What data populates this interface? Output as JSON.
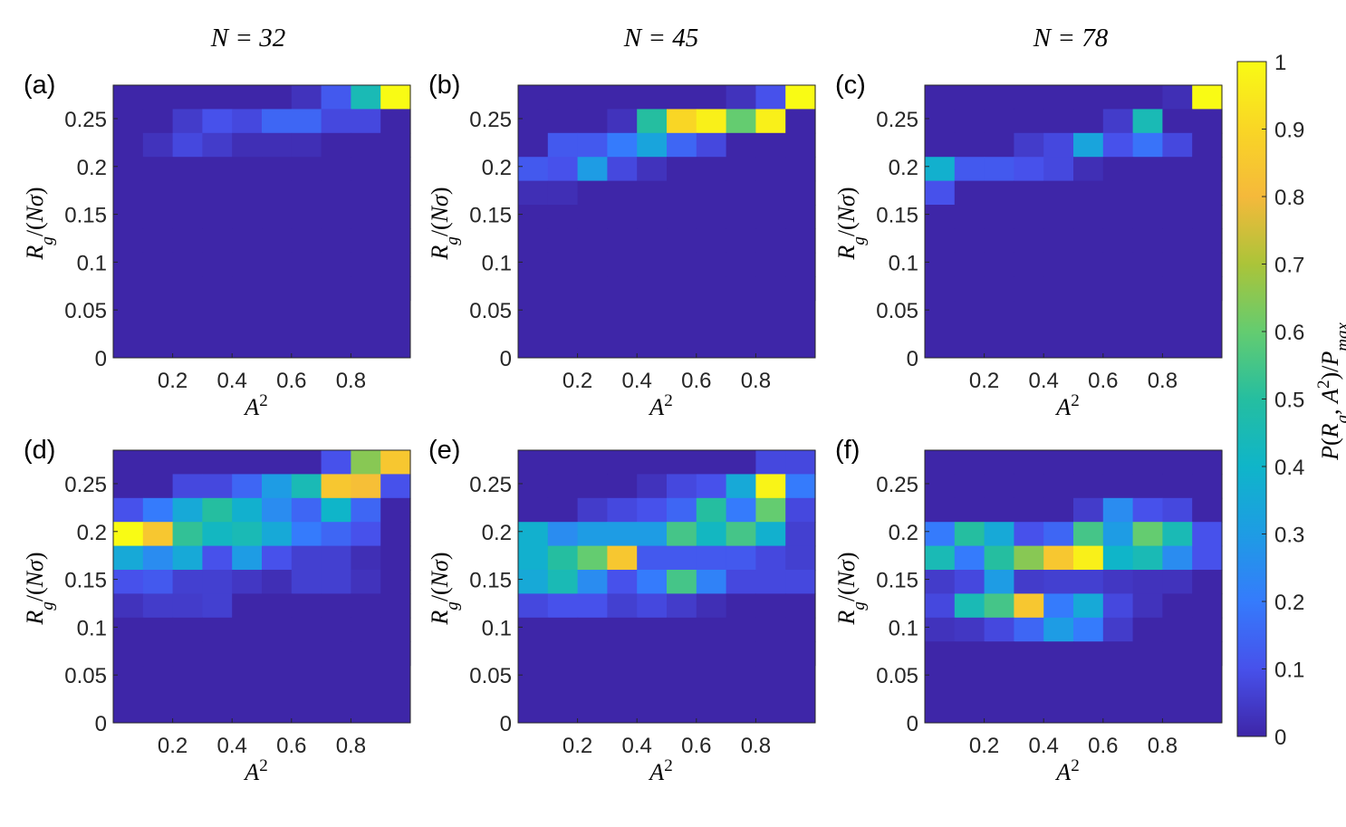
{
  "colors": {
    "background": "#ffffff",
    "axis": "#262626"
  },
  "chart_data": {
    "type": "heatmap",
    "colormap": "parula",
    "x_label_text": "A²",
    "y_label_text": "R_g/(Nσ)",
    "x_ticks": [
      0.2,
      0.4,
      0.6,
      0.8
    ],
    "x_tick_labels": [
      "0.2",
      "0.4",
      "0.6",
      "0.8"
    ],
    "y_ticks": [
      0,
      0.05,
      0.1,
      0.15,
      0.2,
      0.25
    ],
    "y_tick_labels": [
      "0",
      "0.05",
      "0.1",
      "0.15",
      "0.2",
      "0.25"
    ],
    "xlim": [
      0,
      1
    ],
    "ylim": [
      0,
      0.285
    ],
    "x_bins": [
      0.05,
      0.15,
      0.25,
      0.35,
      0.45,
      0.55,
      0.65,
      0.75,
      0.85,
      0.95
    ],
    "y_bins_top_to_bottom": [
      0.275,
      0.25,
      0.225,
      0.2,
      0.175,
      0.15,
      0.125,
      0.1,
      0.075
    ],
    "column_titles": [
      "N = 32",
      "N = 45",
      "N = 78"
    ],
    "colorbar": {
      "label": "P(R_g, A²)/P_max",
      "range": [
        0,
        1
      ],
      "ticks": [
        0,
        0.1,
        0.2,
        0.3,
        0.4,
        0.5,
        0.6,
        0.7,
        0.8,
        0.9,
        1
      ],
      "tick_labels": [
        "0",
        "0.1",
        "0.2",
        "0.3",
        "0.4",
        "0.5",
        "0.6",
        "0.7",
        "0.8",
        "0.9",
        "1"
      ]
    },
    "panels": [
      {
        "label": "(a)",
        "N": 32,
        "values": [
          [
            0,
            0,
            0,
            0,
            0,
            0,
            0.03,
            0.12,
            0.45,
            1
          ],
          [
            0,
            0,
            0.05,
            0.1,
            0.08,
            0.15,
            0.15,
            0.08,
            0.08,
            0
          ],
          [
            0,
            0.03,
            0.08,
            0.05,
            0.02,
            0.02,
            0.02,
            0,
            0,
            0
          ],
          [
            0,
            0,
            0,
            0,
            0,
            0,
            0,
            0,
            0,
            0
          ],
          [
            0,
            0,
            0,
            0,
            0,
            0,
            0,
            0,
            0,
            0
          ],
          [
            0,
            0,
            0,
            0,
            0,
            0,
            0,
            0,
            0,
            0
          ],
          [
            0,
            0,
            0,
            0,
            0,
            0,
            0,
            0,
            0,
            0
          ],
          [
            0,
            0,
            0,
            0,
            0,
            0,
            0,
            0,
            0,
            0
          ],
          [
            0,
            0,
            0,
            0,
            0,
            0,
            0,
            0,
            0,
            0
          ]
        ]
      },
      {
        "label": "(b)",
        "N": 45,
        "values": [
          [
            0,
            0,
            0,
            0,
            0,
            0,
            0,
            0.03,
            0.1,
            1
          ],
          [
            0,
            0,
            0,
            0.03,
            0.5,
            0.9,
            0.97,
            0.6,
            0.97,
            0
          ],
          [
            0,
            0.12,
            0.12,
            0.2,
            0.33,
            0.15,
            0.08,
            0,
            0,
            0
          ],
          [
            0.12,
            0.1,
            0.3,
            0.08,
            0.03,
            0,
            0,
            0,
            0,
            0
          ],
          [
            0.02,
            0.02,
            0,
            0,
            0,
            0,
            0,
            0,
            0,
            0
          ],
          [
            0,
            0,
            0,
            0,
            0,
            0,
            0,
            0,
            0,
            0
          ],
          [
            0,
            0,
            0,
            0,
            0,
            0,
            0,
            0,
            0,
            0
          ],
          [
            0,
            0,
            0,
            0,
            0,
            0,
            0,
            0,
            0,
            0
          ],
          [
            0,
            0,
            0,
            0,
            0,
            0,
            0,
            0,
            0,
            0
          ]
        ]
      },
      {
        "label": "(c)",
        "N": 78,
        "values": [
          [
            0,
            0,
            0,
            0,
            0,
            0,
            0,
            0,
            0.02,
            1
          ],
          [
            0,
            0,
            0,
            0,
            0,
            0,
            0.05,
            0.45,
            0,
            0
          ],
          [
            0,
            0,
            0,
            0.05,
            0.08,
            0.33,
            0.1,
            0.18,
            0.08,
            0
          ],
          [
            0.38,
            0.12,
            0.12,
            0.1,
            0.08,
            0.02,
            0,
            0,
            0,
            0
          ],
          [
            0.1,
            0,
            0,
            0,
            0,
            0,
            0,
            0,
            0,
            0
          ],
          [
            0,
            0,
            0,
            0,
            0,
            0,
            0,
            0,
            0,
            0
          ],
          [
            0,
            0,
            0,
            0,
            0,
            0,
            0,
            0,
            0,
            0
          ],
          [
            0,
            0,
            0,
            0,
            0,
            0,
            0,
            0,
            0,
            0
          ],
          [
            0,
            0,
            0,
            0,
            0,
            0,
            0,
            0,
            0,
            0
          ]
        ]
      },
      {
        "label": "(d)",
        "N": 32,
        "values": [
          [
            0,
            0,
            0,
            0,
            0,
            0,
            0,
            0.1,
            0.65,
            0.85
          ],
          [
            0,
            0,
            0.08,
            0.08,
            0.15,
            0.3,
            0.45,
            0.85,
            0.82,
            0.1
          ],
          [
            0.1,
            0.2,
            0.35,
            0.5,
            0.38,
            0.25,
            0.15,
            0.4,
            0.15,
            0
          ],
          [
            1,
            0.85,
            0.52,
            0.42,
            0.45,
            0.35,
            0.2,
            0.15,
            0.1,
            0
          ],
          [
            0.35,
            0.25,
            0.35,
            0.1,
            0.3,
            0.1,
            0.06,
            0.06,
            0.02,
            0
          ],
          [
            0.1,
            0.12,
            0.06,
            0.06,
            0.04,
            0.02,
            0.06,
            0.06,
            0.03,
            0
          ],
          [
            0.03,
            0.05,
            0.05,
            0.06,
            0,
            0,
            0,
            0,
            0,
            0
          ],
          [
            0,
            0,
            0,
            0,
            0,
            0,
            0,
            0,
            0,
            0
          ],
          [
            0,
            0,
            0,
            0,
            0,
            0,
            0,
            0,
            0,
            0
          ]
        ]
      },
      {
        "label": "(e)",
        "N": 45,
        "values": [
          [
            0,
            0,
            0,
            0,
            0,
            0,
            0,
            0,
            0.08,
            0.08
          ],
          [
            0,
            0,
            0,
            0,
            0.03,
            0.08,
            0.1,
            0.35,
            0.98,
            0.2
          ],
          [
            0,
            0,
            0.05,
            0.08,
            0.1,
            0.15,
            0.5,
            0.2,
            0.6,
            0.08
          ],
          [
            0.38,
            0.25,
            0.3,
            0.3,
            0.3,
            0.55,
            0.42,
            0.55,
            0.38,
            0.06
          ],
          [
            0.38,
            0.5,
            0.6,
            0.85,
            0.12,
            0.12,
            0.12,
            0.12,
            0.08,
            0.06
          ],
          [
            0.35,
            0.45,
            0.25,
            0.1,
            0.2,
            0.55,
            0.22,
            0.08,
            0.08,
            0.08
          ],
          [
            0.08,
            0.1,
            0.1,
            0.06,
            0.08,
            0.05,
            0.02,
            0,
            0,
            0
          ],
          [
            0,
            0,
            0,
            0,
            0,
            0,
            0,
            0,
            0,
            0
          ],
          [
            0,
            0,
            0,
            0,
            0,
            0,
            0,
            0,
            0,
            0
          ]
        ]
      },
      {
        "label": "(f)",
        "N": 78,
        "values": [
          [
            0,
            0,
            0,
            0,
            0,
            0,
            0,
            0,
            0,
            0
          ],
          [
            0,
            0,
            0,
            0,
            0,
            0,
            0,
            0,
            0,
            0
          ],
          [
            0,
            0,
            0,
            0,
            0,
            0.05,
            0.25,
            0.1,
            0.08,
            0
          ],
          [
            0.2,
            0.5,
            0.35,
            0.1,
            0.15,
            0.55,
            0.3,
            0.6,
            0.45,
            0.1
          ],
          [
            0.45,
            0.2,
            0.5,
            0.65,
            0.85,
            0.97,
            0.4,
            0.45,
            0.25,
            0.1
          ],
          [
            0.05,
            0.08,
            0.3,
            0.05,
            0.06,
            0.06,
            0.04,
            0.03,
            0.03,
            0
          ],
          [
            0.08,
            0.45,
            0.55,
            0.85,
            0.2,
            0.35,
            0.08,
            0.03,
            0,
            0
          ],
          [
            0.03,
            0.04,
            0.08,
            0.15,
            0.3,
            0.2,
            0.05,
            0,
            0,
            0
          ],
          [
            0,
            0,
            0,
            0,
            0,
            0,
            0,
            0,
            0,
            0
          ]
        ]
      }
    ]
  }
}
